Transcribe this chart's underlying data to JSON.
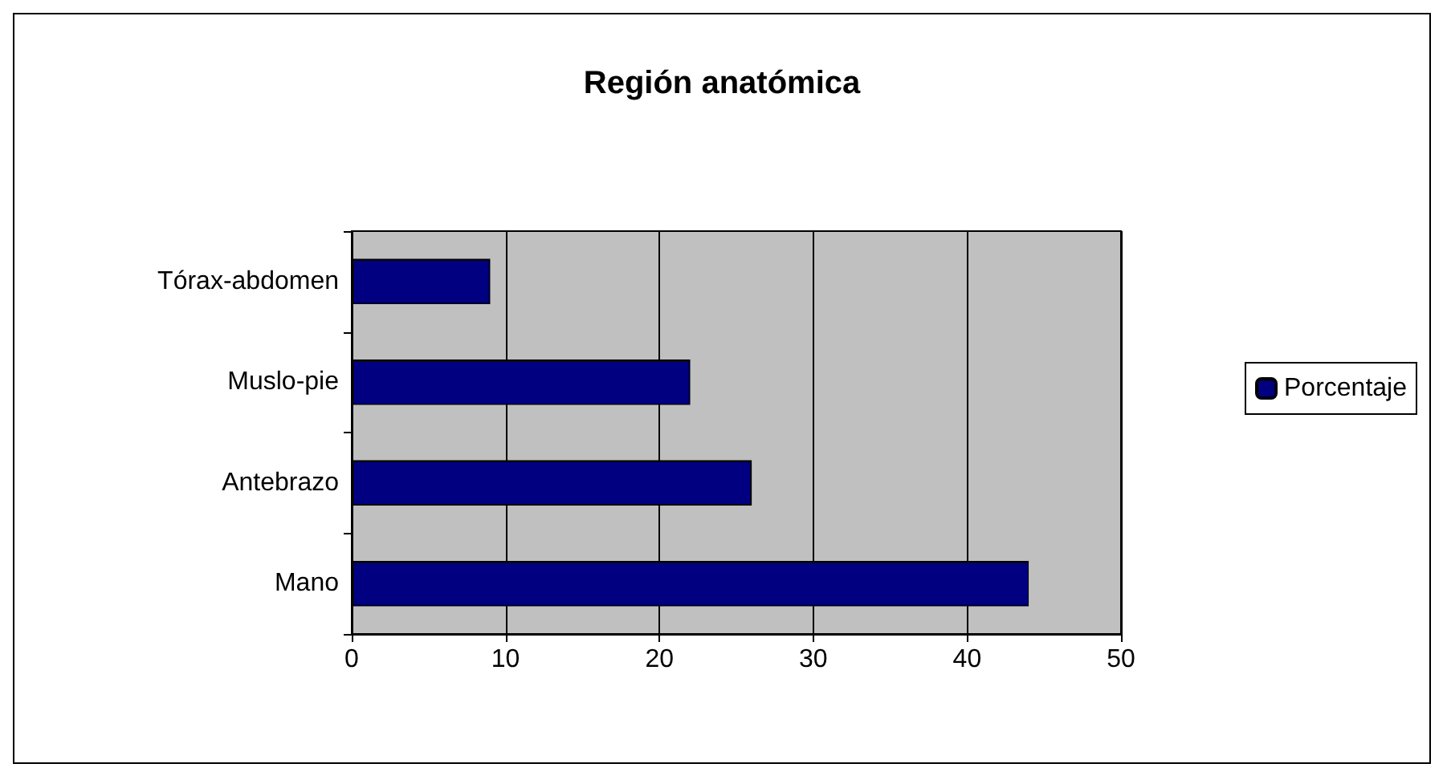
{
  "chart_data": {
    "type": "bar",
    "title": "Región anatómica",
    "orientation": "horizontal",
    "categories": [
      "Tórax-abdomen",
      "Muslo-pie",
      "Antebrazo",
      "Mano"
    ],
    "series": [
      {
        "name": "Porcentaje",
        "color": "#000080",
        "values": [
          9,
          22,
          26,
          44
        ]
      }
    ],
    "xlim": [
      0,
      50
    ],
    "xticks": [
      0,
      10,
      20,
      30,
      40,
      50
    ],
    "grid": "x",
    "legend": "right"
  }
}
